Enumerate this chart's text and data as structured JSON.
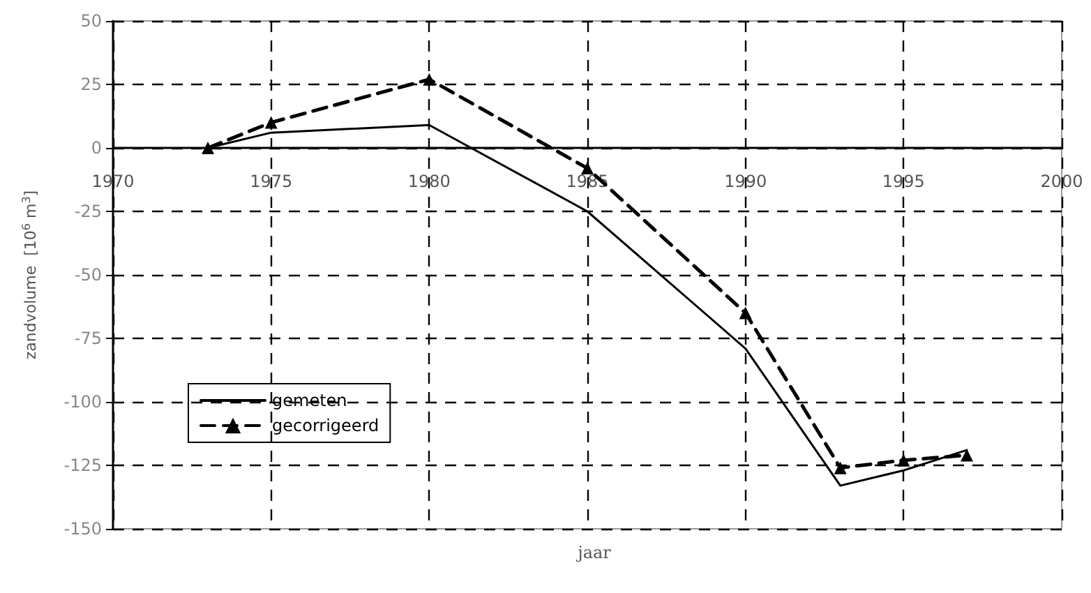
{
  "chart_data": {
    "type": "line",
    "xlabel": "jaar",
    "ylabel": "zandvolume  [10$^{6}$ m$^{3}$]",
    "xlim": [
      1970,
      2000
    ],
    "xticks": [
      1970,
      1975,
      1980,
      1985,
      1990,
      1995,
      2000
    ],
    "ylim": [
      -150,
      50
    ],
    "yticks": [
      -150,
      -125,
      -100,
      -75,
      -50,
      -25,
      0,
      25,
      50
    ],
    "grid": true,
    "legend": "left",
    "series": [
      {
        "name": "gemeten",
        "color": "#000000",
        "x": [
          1973,
          1975,
          1980,
          1985,
          1990,
          1993,
          1995,
          1997
        ],
        "values": [
          0,
          6,
          9,
          -25,
          -79,
          -133,
          -127,
          -119
        ],
        "marker": "none",
        "line_style": "solid"
      },
      {
        "name": "gecorrigeerd",
        "color": "#000000",
        "x": [
          1973,
          1975,
          1980,
          1985,
          1990,
          1993,
          1995,
          1997
        ],
        "values": [
          0,
          10,
          27,
          -8,
          -65,
          -126,
          -123,
          -121
        ],
        "marker": "triangle",
        "line_style": "dashed"
      }
    ]
  }
}
